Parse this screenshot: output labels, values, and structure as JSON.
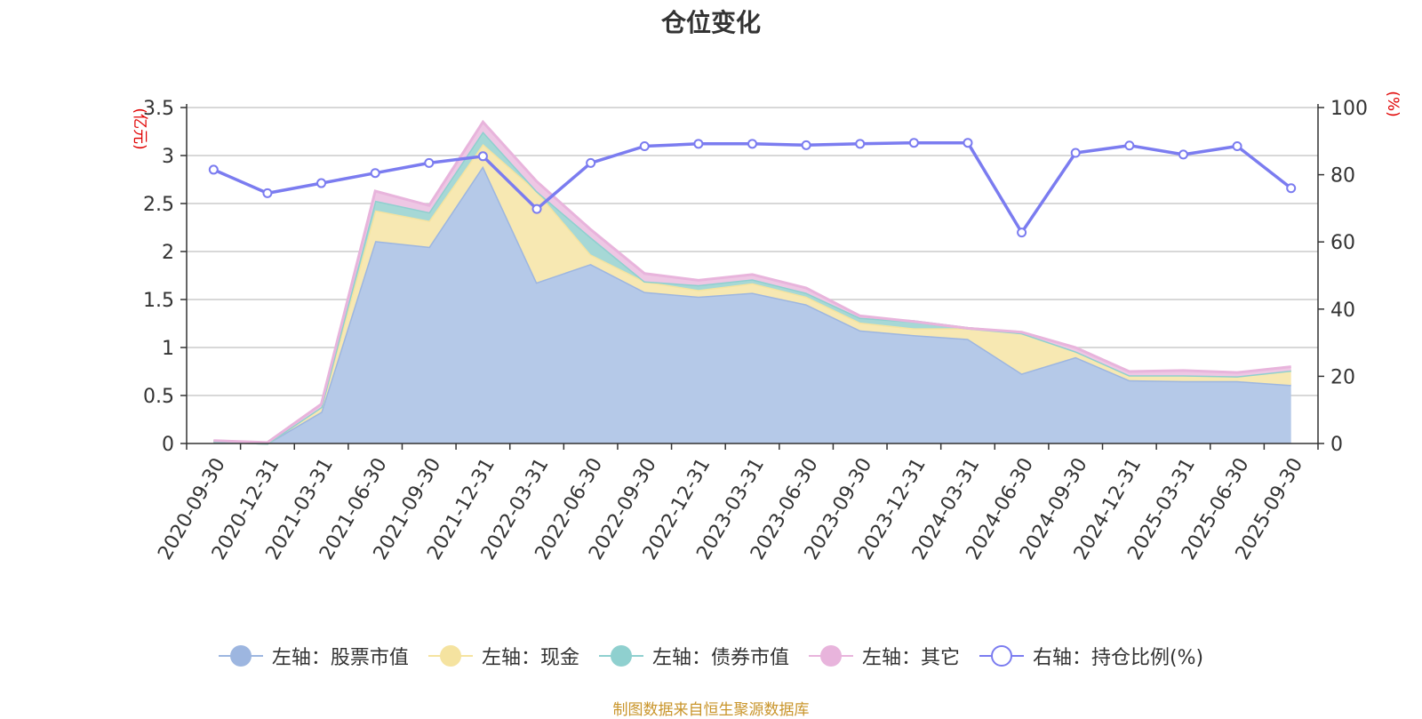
{
  "chart_data": {
    "type": "area",
    "title": "仓位变化",
    "left_axis": {
      "unit": "(亿元)",
      "ylim": [
        0,
        3.5
      ],
      "ticks": [
        "0",
        "0.5",
        "1",
        "1.5",
        "2",
        "2.5",
        "3",
        "3.5"
      ],
      "tick_values": [
        0,
        0.5,
        1,
        1.5,
        2,
        2.5,
        3,
        3.5
      ]
    },
    "right_axis": {
      "unit": "(%)",
      "ylim": [
        0,
        100
      ],
      "ticks": [
        "0",
        "20",
        "40",
        "60",
        "80",
        "100"
      ],
      "tick_values": [
        0,
        20,
        40,
        60,
        80,
        100
      ]
    },
    "categories": [
      "2020-09-30",
      "2020-12-31",
      "2021-03-31",
      "2021-06-30",
      "2021-09-30",
      "2021-12-31",
      "2022-03-31",
      "2022-06-30",
      "2022-09-30",
      "2022-12-31",
      "2023-03-31",
      "2023-06-30",
      "2023-09-30",
      "2023-12-31",
      "2024-03-31",
      "2024-06-30",
      "2024-09-30",
      "2024-12-31",
      "2025-03-31",
      "2025-06-30",
      "2025-09-30"
    ],
    "series": [
      {
        "name": "左轴：股票市值",
        "axis": "left",
        "kind": "stacked-area",
        "color": "#9db6e0",
        "fill": "#b5c9e8",
        "values": [
          0.02,
          0.0,
          0.33,
          2.11,
          2.05,
          2.89,
          1.68,
          1.87,
          1.58,
          1.53,
          1.57,
          1.45,
          1.18,
          1.13,
          1.09,
          0.73,
          0.9,
          0.66,
          0.65,
          0.65,
          0.61
        ]
      },
      {
        "name": "左轴：现金",
        "axis": "left",
        "kind": "stacked-area",
        "color": "#f5e3a0",
        "fill": "#f7e8b2",
        "values": [
          0.0,
          0.0,
          0.05,
          0.32,
          0.27,
          0.23,
          0.95,
          0.1,
          0.11,
          0.07,
          0.1,
          0.08,
          0.08,
          0.07,
          0.11,
          0.42,
          0.06,
          0.05,
          0.06,
          0.05,
          0.15
        ]
      },
      {
        "name": "左轴：债券市值",
        "axis": "left",
        "kind": "stacked-area",
        "color": "#8fd0cf",
        "fill": "#a6d8d6",
        "values": [
          0.0,
          0.0,
          0.0,
          0.1,
          0.09,
          0.13,
          0.0,
          0.18,
          0.0,
          0.05,
          0.04,
          0.04,
          0.05,
          0.07,
          0.0,
          0.0,
          0.0,
          0.0,
          0.0,
          0.0,
          0.0
        ]
      },
      {
        "name": "左轴：其它",
        "axis": "left",
        "kind": "stacked-area",
        "color": "#e8b4dc",
        "fill": "#eec7e4",
        "values": [
          0.01,
          0.01,
          0.03,
          0.1,
          0.07,
          0.1,
          0.1,
          0.08,
          0.08,
          0.05,
          0.05,
          0.05,
          0.02,
          0.0,
          0.0,
          0.01,
          0.04,
          0.04,
          0.05,
          0.04,
          0.04
        ]
      },
      {
        "name": "右轴：持仓比例(%)",
        "axis": "right",
        "kind": "line",
        "color": "#7b7cf0",
        "values": [
          81.5,
          74.5,
          77.5,
          80.5,
          83.5,
          85.5,
          69.8,
          83.5,
          88.5,
          89.2,
          89.2,
          88.8,
          89.2,
          89.5,
          89.5,
          62.8,
          86.5,
          88.7,
          86.0,
          88.5,
          76.0
        ]
      }
    ],
    "grid": true,
    "legend_position": "bottom"
  },
  "source_note": "制图数据来自恒生聚源数据库"
}
